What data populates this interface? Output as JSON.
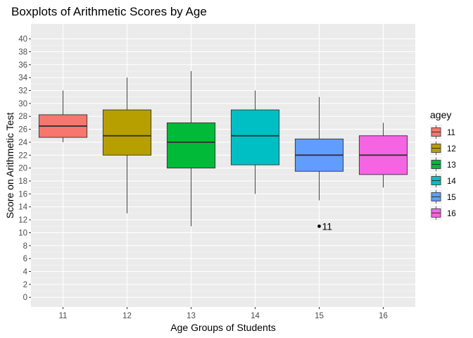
{
  "chart_data": {
    "type": "boxplot",
    "title": "Boxplots of Arithmetic Scores by Age",
    "xlabel": "Age Groups of Students",
    "ylabel": "Score on Arithmetic Test",
    "ylim": [
      -1.5,
      42.3
    ],
    "yticks": [
      0,
      2,
      4,
      6,
      8,
      10,
      12,
      14,
      16,
      18,
      20,
      22,
      24,
      26,
      28,
      30,
      32,
      34,
      36,
      38,
      40
    ],
    "categories": [
      "11",
      "12",
      "13",
      "14",
      "15",
      "16"
    ],
    "grid": true,
    "legend": {
      "title": "agey",
      "placement": "right"
    },
    "boxes": [
      {
        "label": "11",
        "lower_whisker": 24,
        "q1": 24.75,
        "median": 26.5,
        "q3": 28.25,
        "upper_whisker": 32,
        "color": "#F8766D"
      },
      {
        "label": "12",
        "lower_whisker": 13,
        "q1": 22,
        "median": 25,
        "q3": 29,
        "upper_whisker": 34,
        "color": "#B79F00"
      },
      {
        "label": "13",
        "lower_whisker": 11,
        "q1": 20,
        "median": 24,
        "q3": 27,
        "upper_whisker": 35,
        "color": "#00BA38"
      },
      {
        "label": "14",
        "lower_whisker": 16,
        "q1": 20.5,
        "median": 25,
        "q3": 29,
        "upper_whisker": 32,
        "color": "#00BFC4"
      },
      {
        "label": "15",
        "lower_whisker": 15,
        "q1": 19.5,
        "median": 22,
        "q3": 24.5,
        "upper_whisker": 31,
        "color": "#619CFF"
      },
      {
        "label": "16",
        "lower_whisker": 17,
        "q1": 19,
        "median": 22,
        "q3": 25,
        "upper_whisker": 27,
        "color": "#F564E3"
      }
    ],
    "outliers": [
      {
        "category": "15",
        "value": 11,
        "label": "11"
      }
    ]
  }
}
